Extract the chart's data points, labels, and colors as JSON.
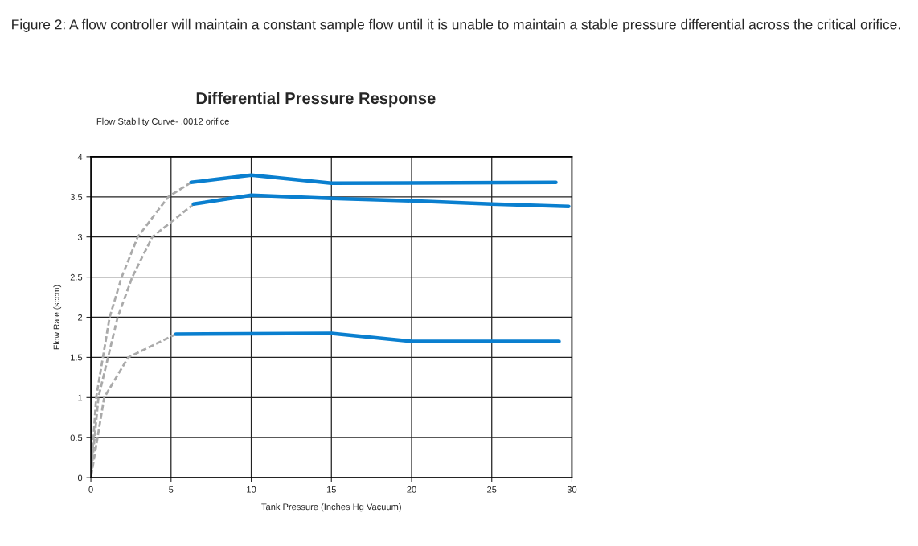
{
  "chart_data": {
    "type": "line",
    "title": "Differential Pressure Response",
    "subtitle": "Flow Stability Curve- .0012 orifice",
    "xlabel": "Tank Pressure (Inches Hg Vacuum)",
    "ylabel": "Flow Rate (sccm)",
    "annotations": [
      "Figure 2: A flow controller will maintain a constant sample flow until it is unable to maintain a stable pressure differential across the critical orifice."
    ],
    "series": [
      {
        "color": "#0a7fcf",
        "line_style": "solid",
        "x": [
          6.25,
          10,
          15,
          29
        ],
        "values": [
          3.68,
          3.77,
          3.67,
          3.68
        ]
      },
      {
        "color": "#0a7fcf",
        "line_style": "solid",
        "x": [
          6.4,
          10,
          15,
          20,
          25,
          29.8
        ],
        "values": [
          3.41,
          3.52,
          3.48,
          3.45,
          3.41,
          3.38
        ]
      },
      {
        "color": "#0a7fcf",
        "line_style": "solid",
        "x": [
          5.3,
          15,
          20,
          29.2
        ],
        "values": [
          1.79,
          1.8,
          1.7,
          1.7
        ]
      },
      {
        "color": "#aaaaaa",
        "line_style": "dashed",
        "x": [
          0,
          0.33,
          1.17,
          1.92,
          2.92,
          4.83,
          6.25
        ],
        "values": [
          0,
          1,
          2,
          2.5,
          3,
          3.5,
          3.68
        ]
      },
      {
        "color": "#aaaaaa",
        "line_style": "dashed",
        "x": [
          0,
          0.47,
          1.67,
          2.58,
          3.83,
          6.42
        ],
        "values": [
          0,
          1,
          2,
          2.5,
          3,
          3.41
        ]
      },
      {
        "color": "#aaaaaa",
        "line_style": "dashed",
        "x": [
          0,
          0.83,
          2.33,
          5.3
        ],
        "values": [
          0,
          1,
          1.5,
          1.79
        ]
      }
    ],
    "xlim": [
      0,
      30
    ],
    "xticks": [
      0,
      5,
      10,
      15,
      20,
      25,
      30
    ],
    "ylim": [
      0,
      4
    ],
    "yticks": [
      0,
      0.5,
      1,
      1.5,
      2,
      2.5,
      3,
      3.5,
      4
    ],
    "grid": true,
    "legend": false
  }
}
